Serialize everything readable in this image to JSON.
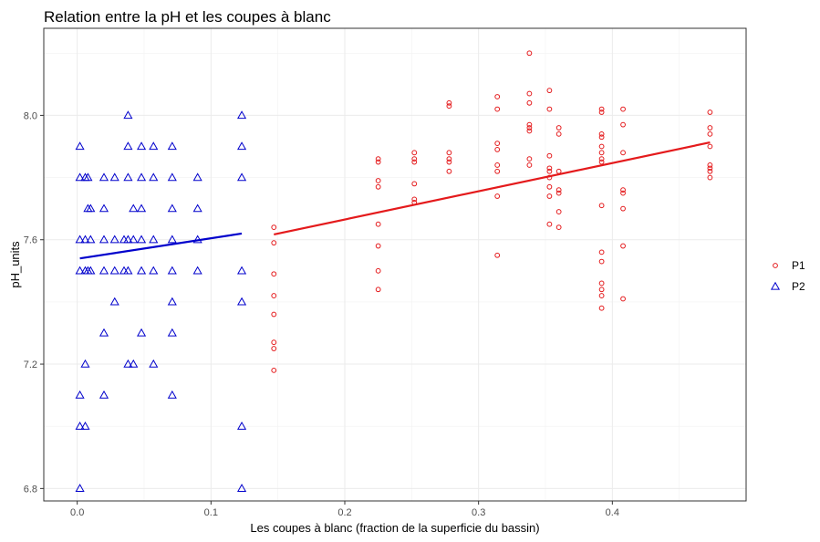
{
  "chart_data": {
    "type": "scatter",
    "title": "Relation entre la pH et les coupes à blanc",
    "xlabel": "Les coupes à blanc (fraction de la superficie du bassin)",
    "ylabel": "pH_units",
    "xlim": [
      -0.025,
      0.5
    ],
    "ylim": [
      6.76,
      8.28
    ],
    "x_ticks": [
      0.0,
      0.1,
      0.2,
      0.3,
      0.4
    ],
    "x_tick_labels": [
      "0.0",
      "0.1",
      "0.2",
      "0.3",
      "0.4"
    ],
    "y_ticks": [
      6.8,
      7.2,
      7.6,
      8.0
    ],
    "y_tick_labels": [
      "6.8",
      "7.2",
      "7.6",
      "8.0"
    ],
    "grid": true,
    "legend_position": "right",
    "series": [
      {
        "name": "P1",
        "marker": "circle",
        "color": "#e41a1c",
        "points": [
          [
            0.147,
            7.64
          ],
          [
            0.147,
            7.59
          ],
          [
            0.147,
            7.49
          ],
          [
            0.147,
            7.42
          ],
          [
            0.147,
            7.36
          ],
          [
            0.147,
            7.27
          ],
          [
            0.147,
            7.25
          ],
          [
            0.147,
            7.18
          ],
          [
            0.225,
            7.86
          ],
          [
            0.225,
            7.85
          ],
          [
            0.225,
            7.79
          ],
          [
            0.225,
            7.77
          ],
          [
            0.225,
            7.65
          ],
          [
            0.225,
            7.58
          ],
          [
            0.225,
            7.5
          ],
          [
            0.225,
            7.44
          ],
          [
            0.252,
            7.88
          ],
          [
            0.252,
            7.86
          ],
          [
            0.252,
            7.85
          ],
          [
            0.252,
            7.78
          ],
          [
            0.252,
            7.73
          ],
          [
            0.252,
            7.72
          ],
          [
            0.278,
            8.04
          ],
          [
            0.278,
            8.03
          ],
          [
            0.278,
            7.88
          ],
          [
            0.278,
            7.86
          ],
          [
            0.278,
            7.85
          ],
          [
            0.278,
            7.82
          ],
          [
            0.314,
            8.06
          ],
          [
            0.314,
            8.02
          ],
          [
            0.314,
            7.91
          ],
          [
            0.314,
            7.89
          ],
          [
            0.314,
            7.84
          ],
          [
            0.314,
            7.82
          ],
          [
            0.314,
            7.74
          ],
          [
            0.314,
            7.55
          ],
          [
            0.338,
            8.2
          ],
          [
            0.338,
            8.07
          ],
          [
            0.338,
            8.04
          ],
          [
            0.338,
            7.97
          ],
          [
            0.338,
            7.96
          ],
          [
            0.338,
            7.95
          ],
          [
            0.338,
            7.86
          ],
          [
            0.338,
            7.84
          ],
          [
            0.353,
            8.08
          ],
          [
            0.353,
            8.02
          ],
          [
            0.353,
            7.87
          ],
          [
            0.353,
            7.83
          ],
          [
            0.353,
            7.82
          ],
          [
            0.353,
            7.8
          ],
          [
            0.353,
            7.77
          ],
          [
            0.353,
            7.74
          ],
          [
            0.353,
            7.65
          ],
          [
            0.36,
            7.96
          ],
          [
            0.36,
            7.94
          ],
          [
            0.36,
            7.82
          ],
          [
            0.36,
            7.76
          ],
          [
            0.36,
            7.75
          ],
          [
            0.36,
            7.69
          ],
          [
            0.36,
            7.64
          ],
          [
            0.392,
            8.02
          ],
          [
            0.392,
            8.01
          ],
          [
            0.392,
            7.94
          ],
          [
            0.392,
            7.93
          ],
          [
            0.392,
            7.9
          ],
          [
            0.392,
            7.88
          ],
          [
            0.392,
            7.86
          ],
          [
            0.392,
            7.85
          ],
          [
            0.392,
            7.71
          ],
          [
            0.392,
            7.56
          ],
          [
            0.392,
            7.53
          ],
          [
            0.392,
            7.46
          ],
          [
            0.392,
            7.44
          ],
          [
            0.392,
            7.42
          ],
          [
            0.392,
            7.38
          ],
          [
            0.408,
            8.02
          ],
          [
            0.408,
            7.97
          ],
          [
            0.408,
            7.88
          ],
          [
            0.408,
            7.76
          ],
          [
            0.408,
            7.75
          ],
          [
            0.408,
            7.7
          ],
          [
            0.408,
            7.58
          ],
          [
            0.408,
            7.41
          ],
          [
            0.473,
            8.01
          ],
          [
            0.473,
            7.96
          ],
          [
            0.473,
            7.94
          ],
          [
            0.473,
            7.9
          ],
          [
            0.473,
            7.84
          ],
          [
            0.473,
            7.83
          ],
          [
            0.473,
            7.82
          ],
          [
            0.473,
            7.8
          ]
        ],
        "fit": [
          [
            0.147,
            7.617
          ],
          [
            0.473,
            7.913
          ]
        ]
      },
      {
        "name": "P2",
        "marker": "triangle",
        "color": "#0000cc",
        "points": [
          [
            0.002,
            7.9
          ],
          [
            0.002,
            7.8
          ],
          [
            0.002,
            7.6
          ],
          [
            0.002,
            7.5
          ],
          [
            0.002,
            7.1
          ],
          [
            0.002,
            7.0
          ],
          [
            0.002,
            6.8
          ],
          [
            0.006,
            7.8
          ],
          [
            0.006,
            7.6
          ],
          [
            0.006,
            7.5
          ],
          [
            0.006,
            7.2
          ],
          [
            0.006,
            7.0
          ],
          [
            0.008,
            7.8
          ],
          [
            0.008,
            7.7
          ],
          [
            0.008,
            7.5
          ],
          [
            0.01,
            7.7
          ],
          [
            0.01,
            7.6
          ],
          [
            0.01,
            7.5
          ],
          [
            0.02,
            7.8
          ],
          [
            0.02,
            7.7
          ],
          [
            0.02,
            7.6
          ],
          [
            0.02,
            7.5
          ],
          [
            0.02,
            7.3
          ],
          [
            0.02,
            7.1
          ],
          [
            0.028,
            7.8
          ],
          [
            0.028,
            7.6
          ],
          [
            0.028,
            7.5
          ],
          [
            0.028,
            7.4
          ],
          [
            0.035,
            7.6
          ],
          [
            0.035,
            7.5
          ],
          [
            0.038,
            8.0
          ],
          [
            0.038,
            7.9
          ],
          [
            0.038,
            7.8
          ],
          [
            0.038,
            7.6
          ],
          [
            0.038,
            7.5
          ],
          [
            0.038,
            7.2
          ],
          [
            0.042,
            7.7
          ],
          [
            0.042,
            7.6
          ],
          [
            0.042,
            7.2
          ],
          [
            0.048,
            7.9
          ],
          [
            0.048,
            7.8
          ],
          [
            0.048,
            7.7
          ],
          [
            0.048,
            7.6
          ],
          [
            0.048,
            7.5
          ],
          [
            0.048,
            7.3
          ],
          [
            0.057,
            7.9
          ],
          [
            0.057,
            7.8
          ],
          [
            0.057,
            7.6
          ],
          [
            0.057,
            7.5
          ],
          [
            0.057,
            7.2
          ],
          [
            0.071,
            7.9
          ],
          [
            0.071,
            7.8
          ],
          [
            0.071,
            7.7
          ],
          [
            0.071,
            7.6
          ],
          [
            0.071,
            7.5
          ],
          [
            0.071,
            7.4
          ],
          [
            0.071,
            7.3
          ],
          [
            0.071,
            7.1
          ],
          [
            0.09,
            7.8
          ],
          [
            0.09,
            7.7
          ],
          [
            0.09,
            7.6
          ],
          [
            0.09,
            7.5
          ],
          [
            0.123,
            8.0
          ],
          [
            0.123,
            7.9
          ],
          [
            0.123,
            7.8
          ],
          [
            0.123,
            7.5
          ],
          [
            0.123,
            7.4
          ],
          [
            0.123,
            7.0
          ],
          [
            0.123,
            6.8
          ]
        ],
        "fit": [
          [
            0.002,
            7.54
          ],
          [
            0.123,
            7.62
          ]
        ]
      }
    ]
  }
}
